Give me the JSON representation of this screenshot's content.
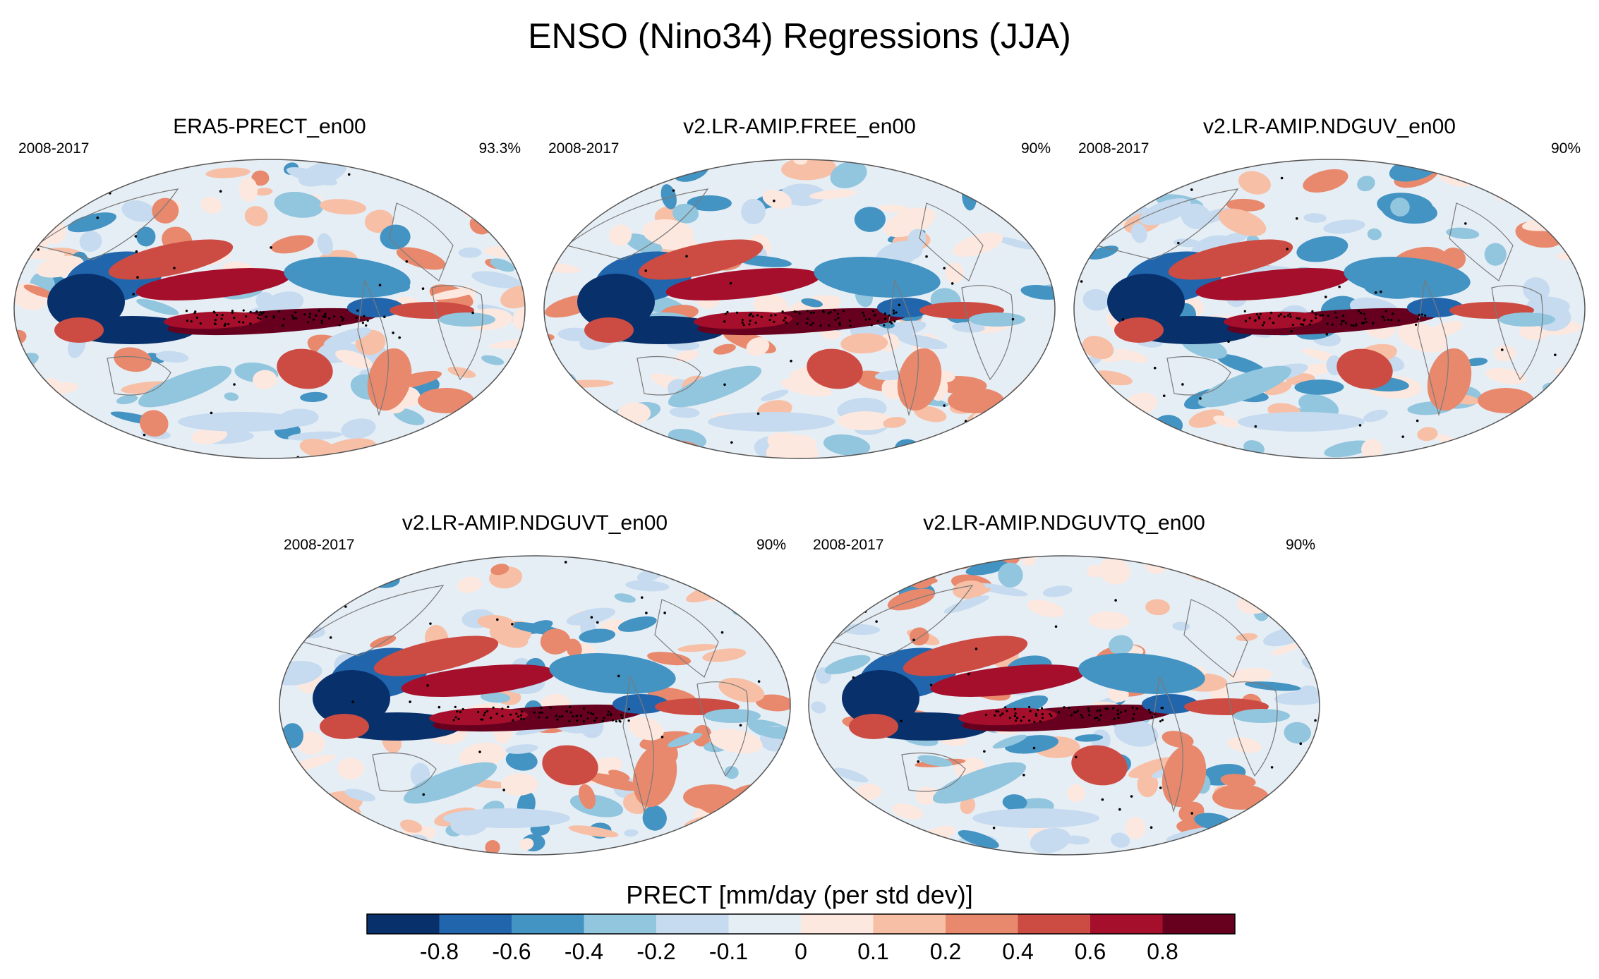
{
  "title": "ENSO (Nino34) Regressions (JJA)",
  "panels": [
    {
      "title": "ERA5-PRECT_en00",
      "period": "2008-2017",
      "percent": "93.3%"
    },
    {
      "title": "v2.LR-AMIP.FREE_en00",
      "period": "2008-2017",
      "percent": "90%"
    },
    {
      "title": "v2.LR-AMIP.NDGUV_en00",
      "period": "2008-2017",
      "percent": "90%"
    },
    {
      "title": "v2.LR-AMIP.NDGUVT_en00",
      "period": "2008-2017",
      "percent": "90%"
    },
    {
      "title": "v2.LR-AMIP.NDGUVTQ_en00",
      "period": "2008-2017",
      "percent": "90%"
    }
  ],
  "chart_data": {
    "type": "heatmap",
    "projection": "Robinson (global map)",
    "variable": "PRECT",
    "colorbar_label": "PRECT [mm/day (per std dev)]",
    "colorbar_levels": [
      -0.8,
      -0.6,
      -0.4,
      -0.2,
      -0.1,
      0,
      0.1,
      0.2,
      0.4,
      0.6,
      0.8
    ],
    "colorbar_tick_labels": [
      "-0.8",
      "-0.6",
      "-0.4",
      "-0.2",
      "-0.1",
      "0",
      "0.1",
      "0.2",
      "0.4",
      "0.6",
      "0.8"
    ],
    "colorbar_colors": [
      "#08306b",
      "#2166ac",
      "#4393c3",
      "#92c5de",
      "#c6dbef",
      "#e6eef5",
      "#fde8e0",
      "#f7bfa5",
      "#e8896d",
      "#cc4c43",
      "#a50f2b",
      "#67001f"
    ],
    "season": "JJA",
    "index": "Nino34"
  }
}
